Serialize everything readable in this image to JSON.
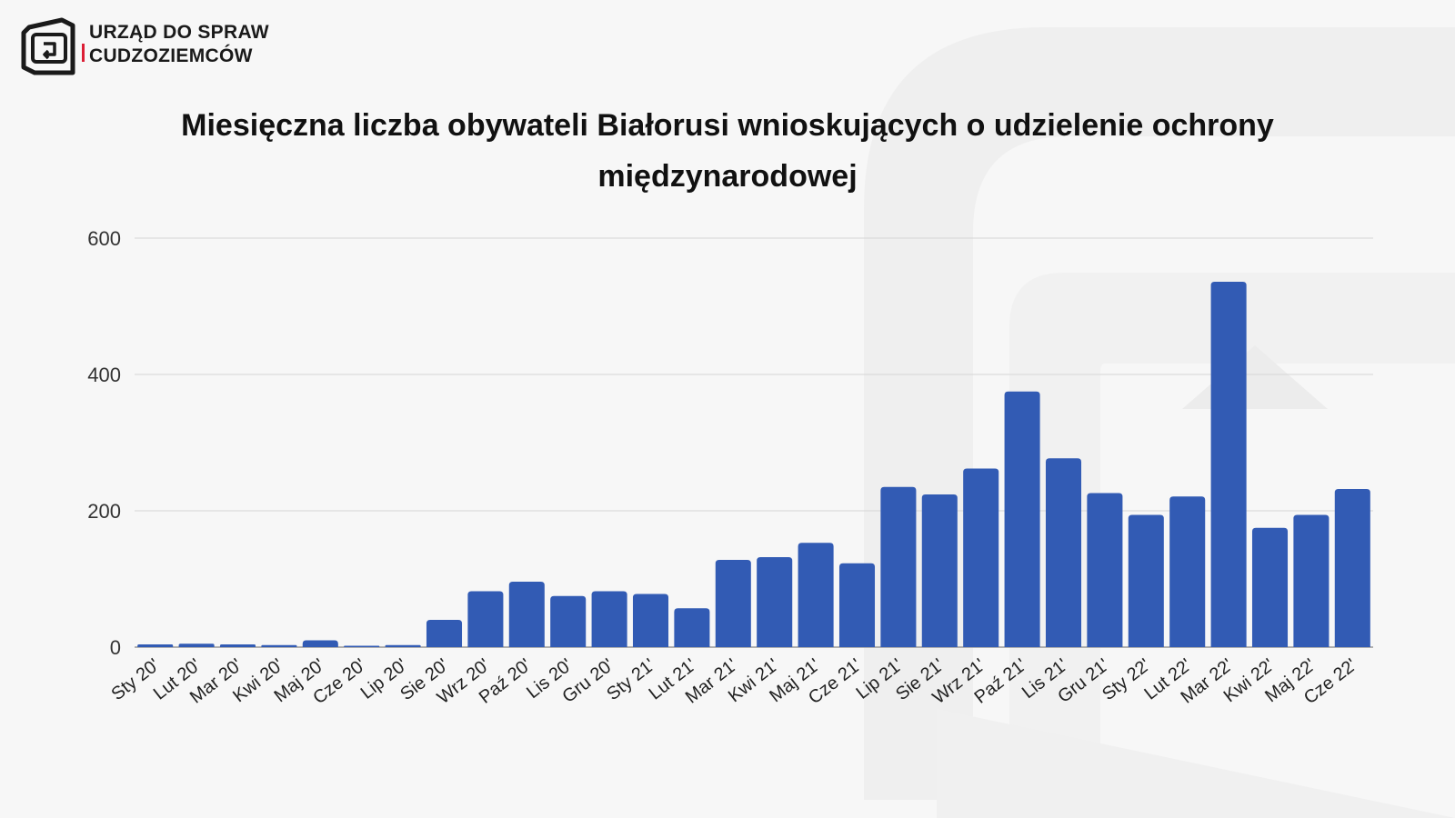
{
  "logo": {
    "line1": "URZĄD DO SPRAW",
    "line2": "CUDZOZIEMCÓW",
    "accent_color": "#dc1e35"
  },
  "chart_data": {
    "type": "bar",
    "title": "Miesięczna liczba obywateli Białorusi wnioskujących o udzielenie ochrony międzynarodowej",
    "xlabel": "",
    "ylabel": "",
    "ylim": [
      0,
      600
    ],
    "yticks": [
      0,
      200,
      400,
      600
    ],
    "grid": true,
    "bar_color": "#325bb4",
    "categories": [
      "Sty 20'",
      "Lut 20'",
      "Mar 20'",
      "Kwi 20'",
      "Maj 20'",
      "Cze 20'",
      "Lip 20'",
      "Sie 20'",
      "Wrz 20'",
      "Paź 20'",
      "Lis 20'",
      "Gru 20'",
      "Sty 21'",
      "Lut 21'",
      "Mar 21'",
      "Kwi 21'",
      "Maj 21'",
      "Cze 21'",
      "Lip 21'",
      "Sie 21'",
      "Wrz 21'",
      "Paź 21'",
      "Lis 21'",
      "Gru 21'",
      "Sty 22'",
      "Lut 22'",
      "Mar 22'",
      "Kwi 22'",
      "Maj 22'",
      "Cze 22'"
    ],
    "values": [
      4,
      5,
      4,
      3,
      10,
      1,
      3,
      40,
      82,
      96,
      75,
      82,
      78,
      57,
      128,
      132,
      153,
      123,
      235,
      224,
      262,
      375,
      277,
      226,
      194,
      221,
      536,
      175,
      194,
      232
    ]
  }
}
